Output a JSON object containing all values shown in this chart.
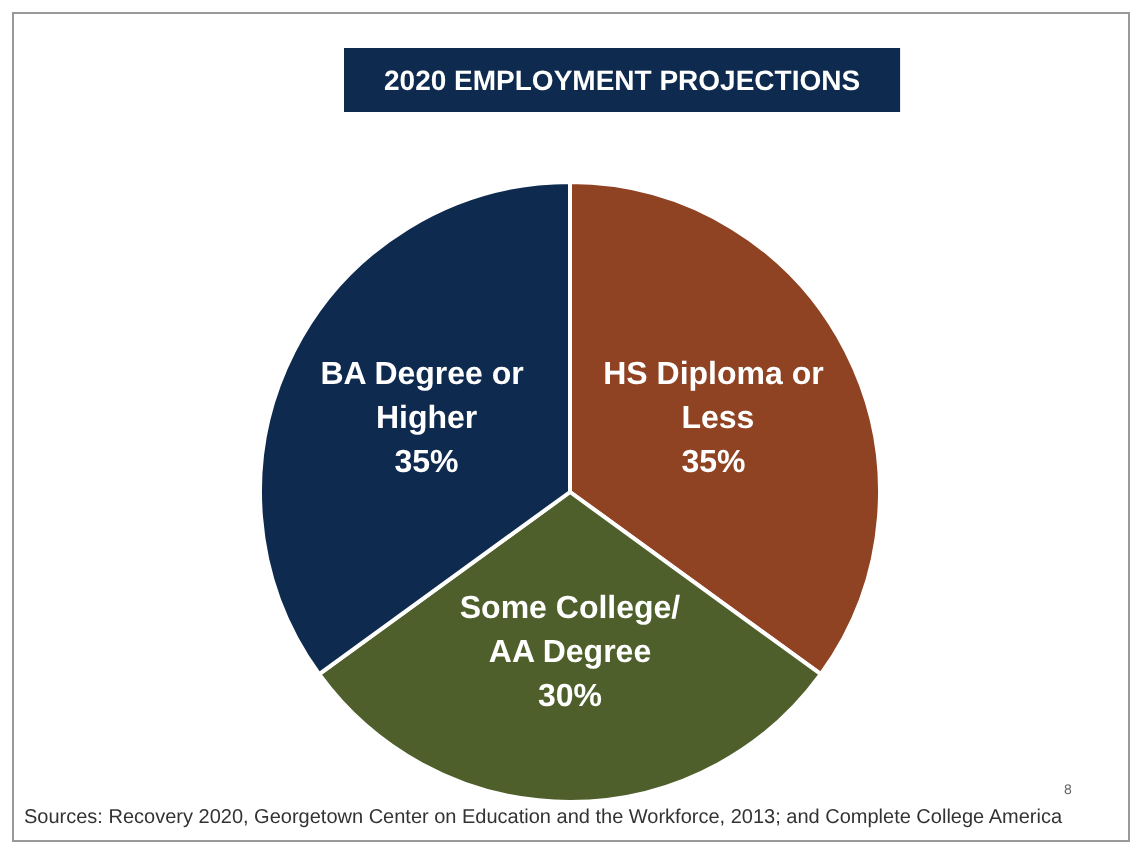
{
  "chart_data": {
    "type": "pie",
    "title": "2020 EMPLOYMENT PROJECTIONS",
    "categories": [
      "HS Diploma or Less",
      "Some College/AA Degree",
      "BA Degree or Higher"
    ],
    "values": [
      35,
      30,
      35
    ],
    "colors": [
      "#8f4322",
      "#4f5f2b",
      "#0e2a4e"
    ],
    "value_labels": [
      "35%",
      "30%",
      "35%"
    ],
    "legend": false,
    "annotations": [
      "Sources: Recovery 2020, Georgetown Center on Education and the Workforce, 2013; and Complete College America",
      "8"
    ]
  }
}
